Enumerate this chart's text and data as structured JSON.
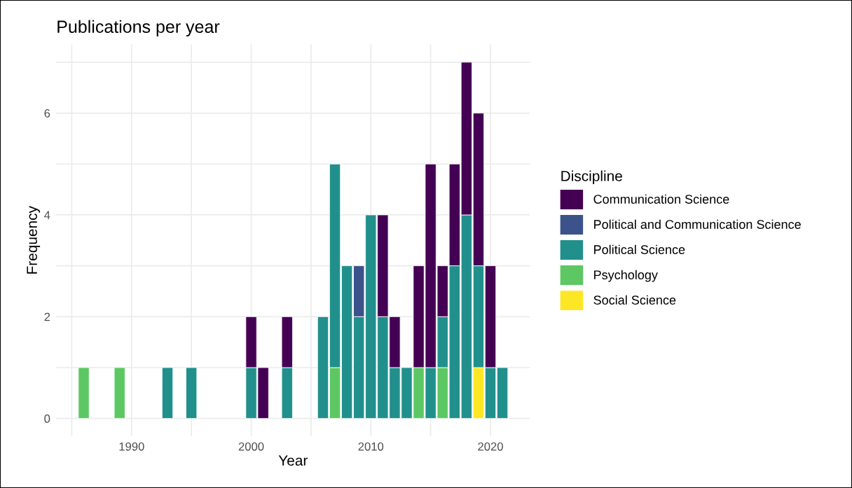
{
  "chart_data": {
    "type": "bar",
    "title": "Publications per year",
    "xlabel": "Year",
    "ylabel": "Frequency",
    "legend_title": "Discipline",
    "stacked": true,
    "x": [
      1986,
      1989,
      1993,
      1995,
      2000,
      2001,
      2003,
      2006,
      2007,
      2008,
      2009,
      2010,
      2011,
      2012,
      2013,
      2014,
      2015,
      2016,
      2017,
      2018,
      2019,
      2020,
      2021
    ],
    "series": [
      {
        "name": "Social Science",
        "color": "#fde725",
        "values": [
          null,
          null,
          null,
          null,
          null,
          null,
          null,
          null,
          null,
          null,
          null,
          null,
          null,
          null,
          null,
          null,
          null,
          null,
          null,
          null,
          1,
          null,
          null
        ]
      },
      {
        "name": "Psychology",
        "color": "#5dc863",
        "values": [
          1,
          1,
          null,
          null,
          null,
          null,
          null,
          null,
          1,
          null,
          null,
          null,
          null,
          null,
          null,
          1,
          null,
          1,
          null,
          null,
          null,
          null,
          null
        ]
      },
      {
        "name": "Political Science",
        "color": "#21908c",
        "values": [
          null,
          null,
          1,
          1,
          1,
          null,
          1,
          2,
          4,
          3,
          2,
          4,
          2,
          1,
          1,
          null,
          1,
          1,
          3,
          4,
          2,
          1,
          1
        ]
      },
      {
        "name": "Political and Communication Science",
        "color": "#3b528b",
        "values": [
          null,
          null,
          null,
          null,
          null,
          null,
          null,
          null,
          null,
          null,
          1,
          null,
          null,
          null,
          null,
          null,
          null,
          null,
          null,
          null,
          null,
          null,
          null
        ]
      },
      {
        "name": "Communication Science",
        "color": "#440154",
        "values": [
          null,
          null,
          null,
          null,
          1,
          1,
          1,
          null,
          null,
          null,
          null,
          null,
          2,
          1,
          null,
          2,
          4,
          1,
          2,
          3,
          3,
          2,
          null
        ]
      }
    ],
    "xlim": [
      1983.7,
      2023.3
    ],
    "ylim": [
      -0.35,
      7.35
    ],
    "xticks": [
      {
        "value": 1985,
        "label": null
      },
      1990,
      {
        "value": 1995,
        "label": null
      },
      2000,
      {
        "value": 2005,
        "label": null
      },
      2010,
      {
        "value": 2015,
        "label": null
      },
      2020
    ],
    "yticks": [
      0,
      {
        "value": 1,
        "label": null
      },
      2,
      {
        "value": 3,
        "label": null
      },
      4,
      {
        "value": 5,
        "label": null
      },
      6,
      {
        "value": 7,
        "label": null
      }
    ],
    "grid": true,
    "legend": "right"
  }
}
